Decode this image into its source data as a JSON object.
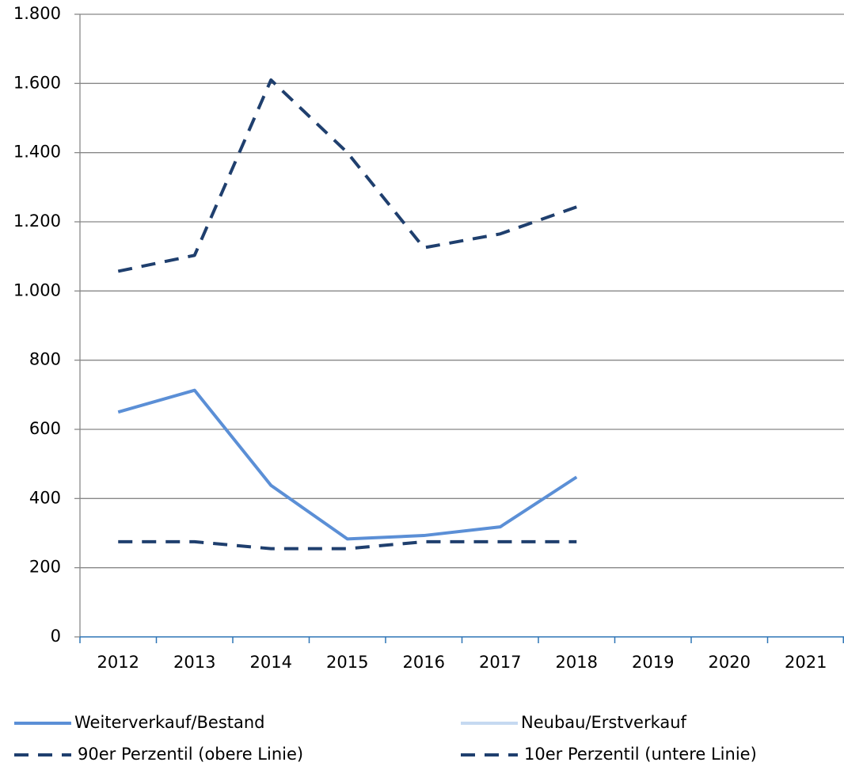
{
  "chart_data": {
    "type": "line",
    "categories": [
      "2012",
      "2013",
      "2014",
      "2015",
      "2016",
      "2017",
      "2018",
      "2019",
      "2020",
      "2021"
    ],
    "series": [
      {
        "name": "Weiterverkauf/Bestand",
        "color": "#5b8fd6",
        "dash": false,
        "values": [
          650,
          713,
          438,
          283,
          293,
          318,
          462,
          null,
          null,
          null
        ]
      },
      {
        "name": "Neubau/Erstverkauf",
        "color": "#c5d9f1",
        "dash": false,
        "values": [
          null,
          null,
          null,
          null,
          null,
          null,
          null,
          null,
          null,
          null
        ]
      },
      {
        "name": "90er Perzentil (obere Linie)",
        "color": "#1f3f6e",
        "dash": true,
        "values": [
          1057,
          1103,
          1610,
          1400,
          1125,
          1165,
          1243,
          null,
          null,
          null
        ]
      },
      {
        "name": "10er Perzentil (untere Linie)",
        "color": "#1f3f6e",
        "dash": true,
        "values": [
          275,
          275,
          255,
          255,
          275,
          275,
          275,
          null,
          null,
          null
        ]
      }
    ],
    "ylim": [
      0,
      1800
    ],
    "yticks": [
      0,
      200,
      400,
      600,
      800,
      {
        "value": 1000,
        "label": "1.000"
      },
      {
        "value": 1200,
        "label": "1.200"
      },
      {
        "value": 1400,
        "label": "1.400"
      },
      {
        "value": 1600,
        "label": "1.600"
      },
      {
        "value": 1800,
        "label": "1.800"
      }
    ],
    "grid": true
  }
}
